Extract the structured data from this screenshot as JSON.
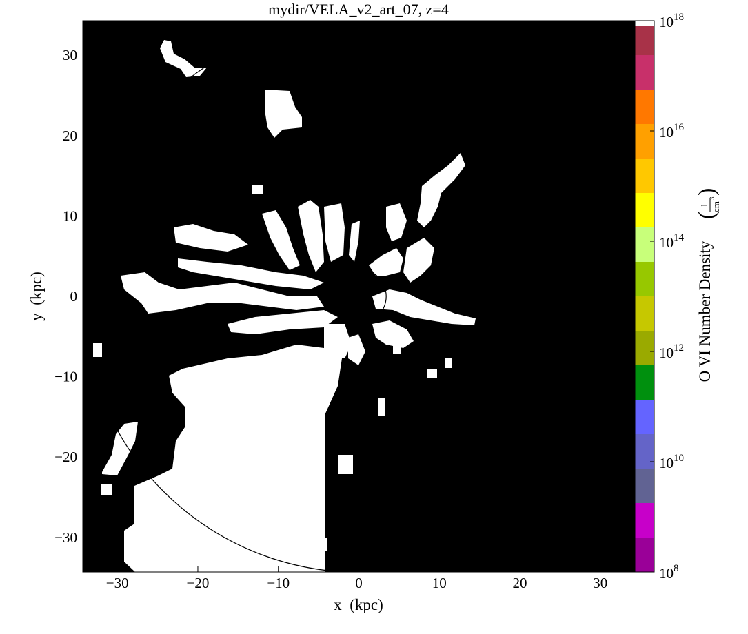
{
  "chart_data": {
    "type": "heatmap",
    "title": "mydir/VELA_v2_art_07, z=4",
    "xlabel": "x  (kpc)",
    "ylabel": "y  (kpc)",
    "xlim": [
      -34.3,
      34.3
    ],
    "ylim": [
      -34.3,
      34.3
    ],
    "xticks": [
      -30,
      -20,
      -10,
      0,
      10,
      20,
      30
    ],
    "yticks": [
      -30,
      -20,
      -10,
      0,
      10,
      20,
      30
    ],
    "xtick_labels": [
      "−30",
      "−20",
      "−10",
      "0",
      "10",
      "20",
      "30"
    ],
    "ytick_labels": [
      "−30",
      "−20",
      "−10",
      "0",
      "10",
      "20",
      "30"
    ],
    "grid": false,
    "colorbar": {
      "label": "O VI Number Density",
      "unit_numerator": "1",
      "unit_denominator": "cm",
      "unit_exponent": "3",
      "scale": "log",
      "range": [
        8,
        18
      ],
      "tick_exponents": [
        10,
        12,
        14,
        16,
        18,
        8
      ],
      "tick_base": "10",
      "tick_exp_labels": [
        "10",
        "12",
        "14",
        "16",
        "18",
        "8"
      ],
      "levels": [
        {
          "from": 8.0,
          "to": 8.625,
          "color": "#9a0098"
        },
        {
          "from": 8.625,
          "to": 9.25,
          "color": "#c700c9"
        },
        {
          "from": 9.25,
          "to": 9.875,
          "color": "#616393"
        },
        {
          "from": 9.875,
          "to": 10.5,
          "color": "#6464c8"
        },
        {
          "from": 10.5,
          "to": 11.125,
          "color": "#6464ff"
        },
        {
          "from": 11.125,
          "to": 11.75,
          "color": "#00900e"
        },
        {
          "from": 11.75,
          "to": 12.375,
          "color": "#9aaa00"
        },
        {
          "from": 12.375,
          "to": 13.0,
          "color": "#c6c800"
        },
        {
          "from": 13.0,
          "to": 13.625,
          "color": "#97c800"
        },
        {
          "from": 13.625,
          "to": 14.25,
          "color": "#c8ff7a"
        },
        {
          "from": 14.25,
          "to": 14.875,
          "color": "#ffff00"
        },
        {
          "from": 14.875,
          "to": 15.5,
          "color": "#ffc800"
        },
        {
          "from": 15.5,
          "to": 16.125,
          "color": "#ffa000"
        },
        {
          "from": 16.125,
          "to": 16.75,
          "color": "#ff7800"
        },
        {
          "from": 16.75,
          "to": 17.375,
          "color": "#c8306a"
        },
        {
          "from": 17.375,
          "to": 17.9,
          "color": "#a83248"
        },
        {
          "from": 17.9,
          "to": 18.0,
          "color": "#ffffff"
        }
      ]
    },
    "background_color": "#000000",
    "foreground_color": "#ffffff",
    "annotations": [
      {
        "kind": "circle",
        "center": [
          0,
          0
        ],
        "radius": 3.4
      },
      {
        "kind": "circle-arc",
        "center": [
          0,
          0
        ],
        "radius": 34.3
      }
    ]
  }
}
